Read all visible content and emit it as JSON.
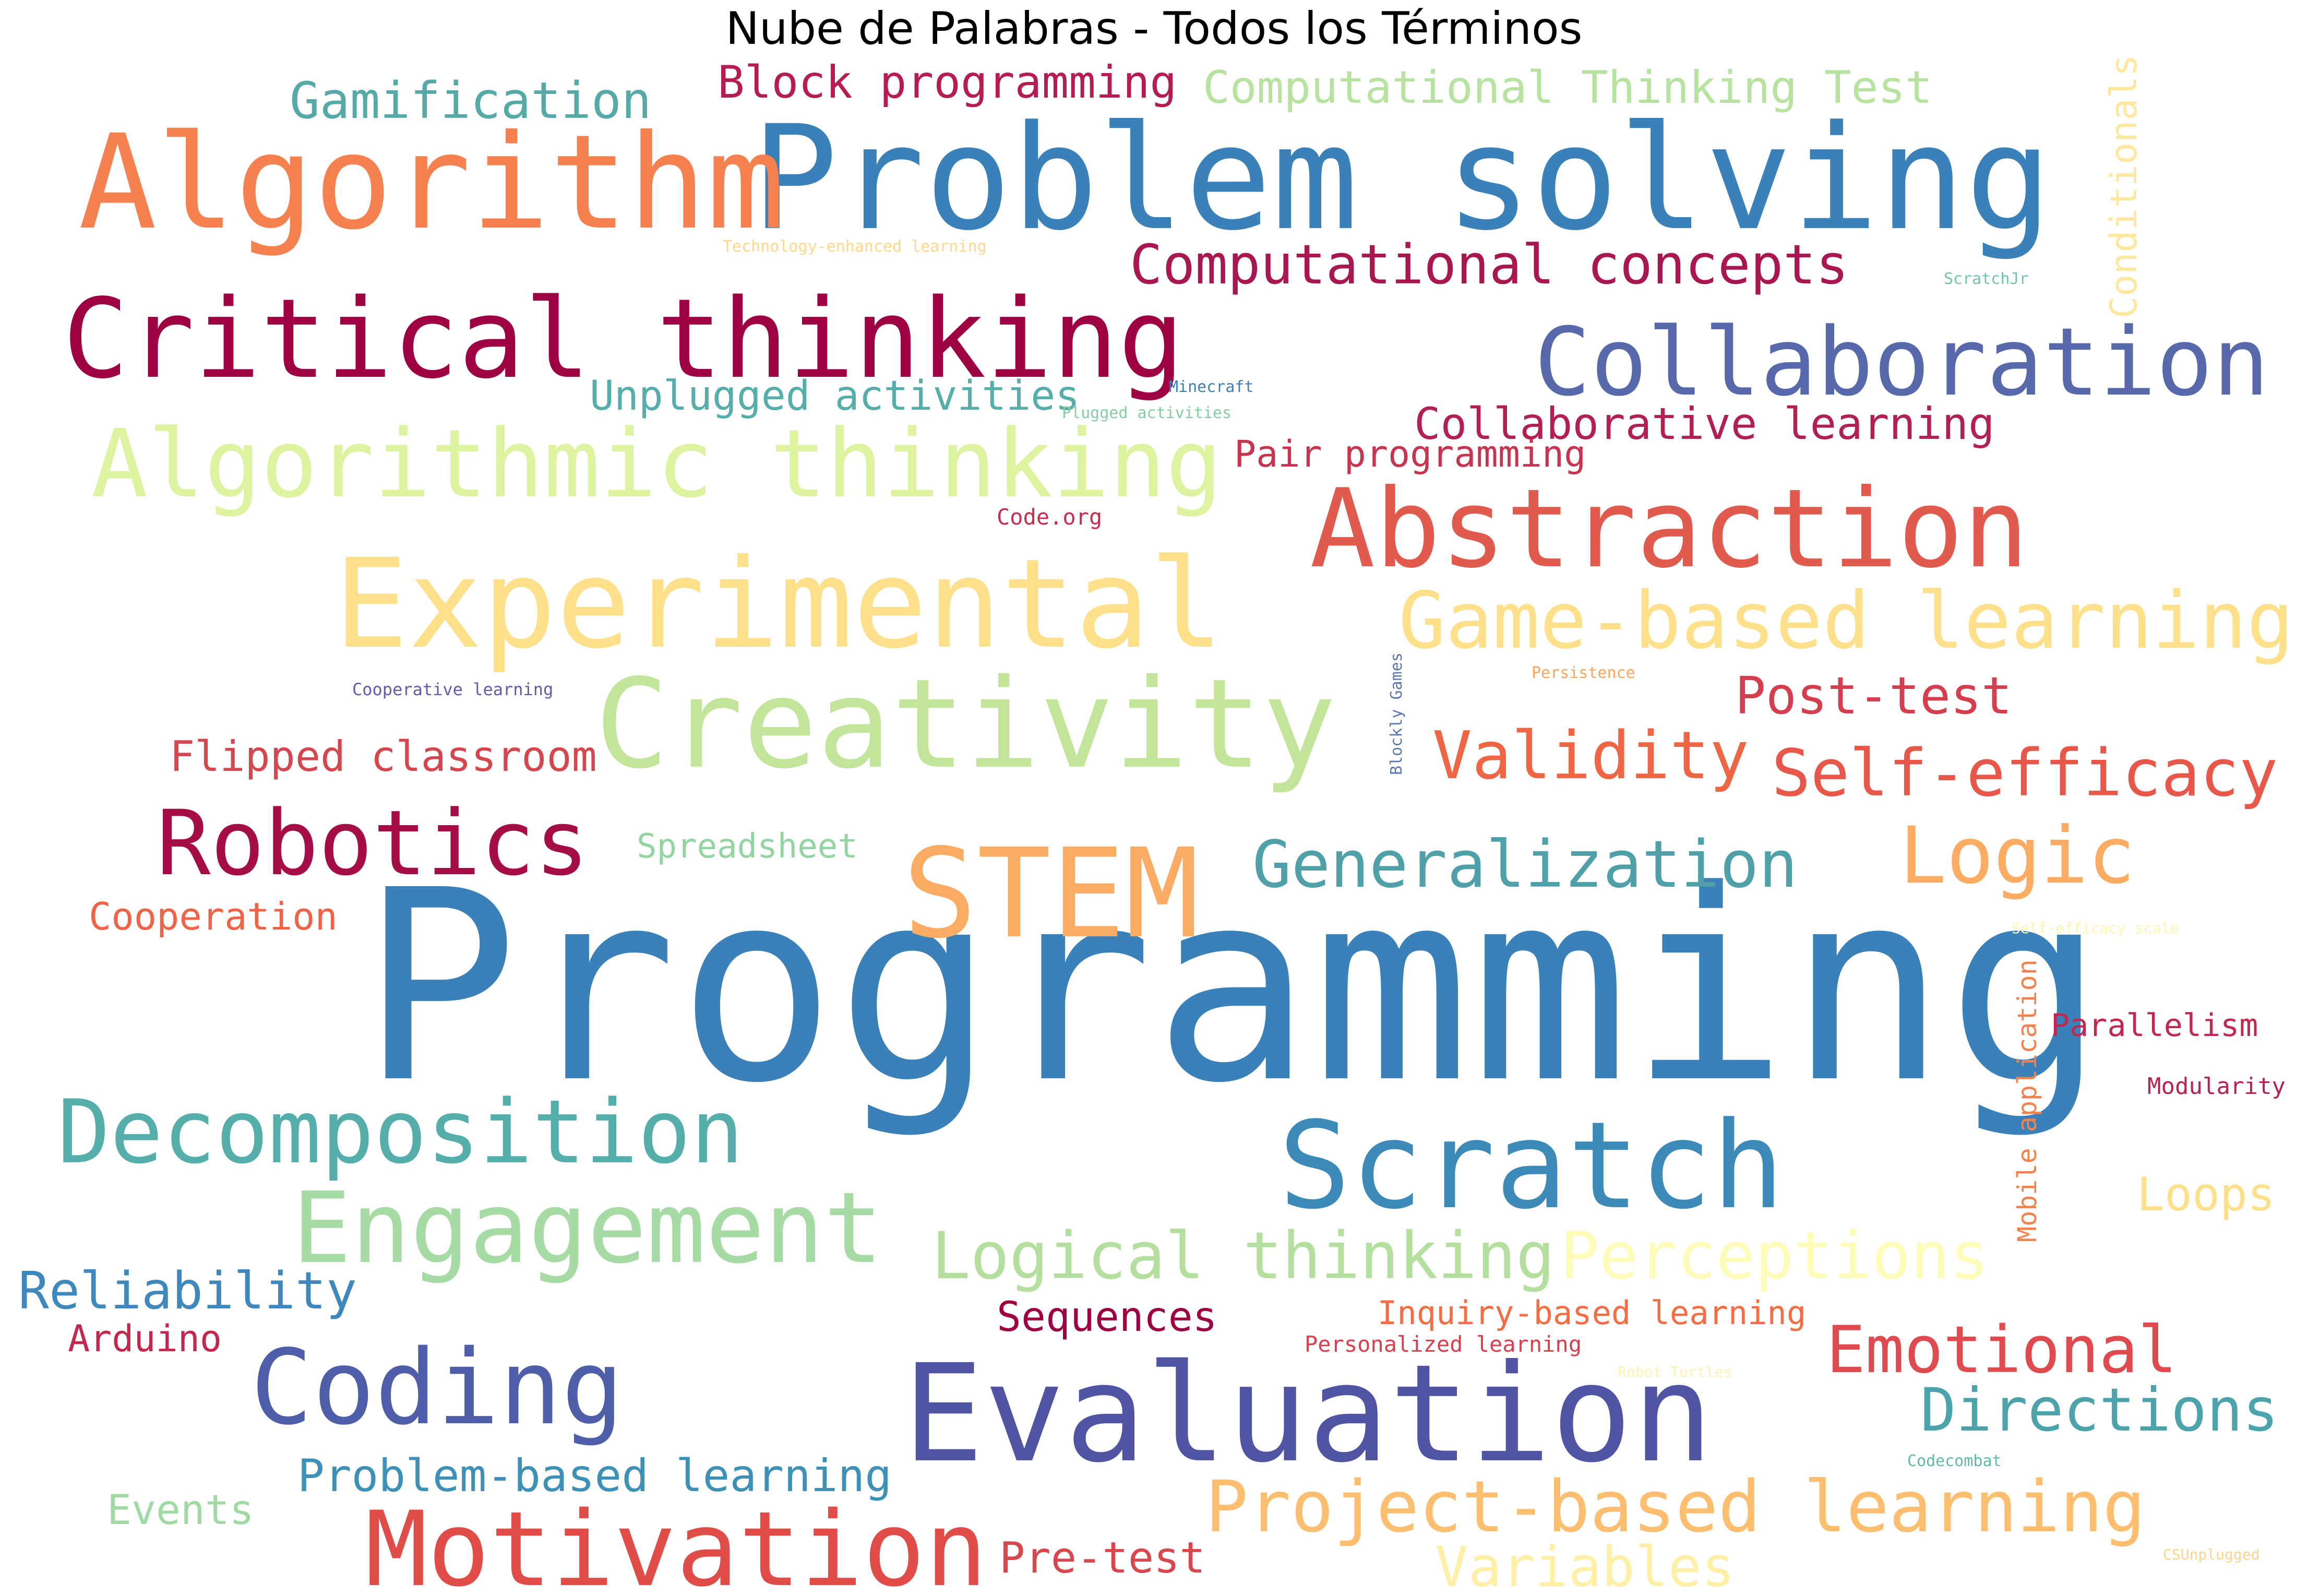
{
  "figure": {
    "title": "Nube de Palabras - Todos los Términos"
  },
  "words": [
    {
      "text": "Programming",
      "color": "#3a80b9"
    },
    {
      "text": "Problem solving",
      "color": "#3a80b9"
    },
    {
      "text": "Algorithm",
      "color": "#f4814f"
    },
    {
      "text": "Evaluation",
      "color": "#5054a3"
    },
    {
      "text": "Creativity",
      "color": "#c2e599"
    },
    {
      "text": "Experimental",
      "color": "#fee08b"
    },
    {
      "text": "Critical thinking",
      "color": "#9e0142"
    },
    {
      "text": "Abstraction",
      "color": "#e05a4d"
    },
    {
      "text": "Collaboration",
      "color": "#5769aa"
    },
    {
      "text": "Algorithmic thinking",
      "color": "#def3a0"
    },
    {
      "text": "STEM",
      "color": "#fbac62"
    },
    {
      "text": "Scratch",
      "color": "#3d8ab8"
    },
    {
      "text": "Motivation",
      "color": "#e04d48"
    },
    {
      "text": "Engagement",
      "color": "#a6dba4"
    },
    {
      "text": "Decomposition",
      "color": "#55aea9"
    },
    {
      "text": "Coding",
      "color": "#4e5ea8"
    },
    {
      "text": "Robotics",
      "color": "#a50d47"
    },
    {
      "text": "Game-based learning",
      "color": "#fee08b"
    },
    {
      "text": "Logic",
      "color": "#fbac62"
    },
    {
      "text": "Generalization",
      "color": "#4fa0a8"
    },
    {
      "text": "Project-based learning",
      "color": "#fdbf6f"
    },
    {
      "text": "Self-efficacy",
      "color": "#e8584a"
    },
    {
      "text": "Validity",
      "color": "#ef6645"
    },
    {
      "text": "Logical thinking",
      "color": "#b4df9e"
    },
    {
      "text": "Perceptions",
      "color": "#fffbb8"
    },
    {
      "text": "Emotional",
      "color": "#de4a4d"
    },
    {
      "text": "Directions",
      "color": "#4da3ab"
    },
    {
      "text": "Computational concepts",
      "color": "#a8174f"
    },
    {
      "text": "Post-test",
      "color": "#d53e4f"
    },
    {
      "text": "Variables",
      "color": "#fff0a6"
    },
    {
      "text": "Reliability",
      "color": "#3f88be"
    },
    {
      "text": "Gamification",
      "color": "#55aaa8"
    },
    {
      "text": "Block programming",
      "color": "#b51d4e"
    },
    {
      "text": "Computational Thinking Test",
      "color": "#b8e2a0"
    },
    {
      "text": "Collaborative learning",
      "color": "#b2204f"
    },
    {
      "text": "Unplugged activities",
      "color": "#55aea9"
    },
    {
      "text": "Flipped classroom",
      "color": "#d5474e"
    },
    {
      "text": "Problem-based learning",
      "color": "#3d91b7"
    },
    {
      "text": "Pair programming",
      "color": "#c7344f"
    },
    {
      "text": "Loops",
      "color": "#fee08b"
    },
    {
      "text": "Pre-test",
      "color": "#d8474e"
    },
    {
      "text": "Sequences",
      "color": "#9e0142"
    },
    {
      "text": "Inquiry-based learning",
      "color": "#f46d43"
    },
    {
      "text": "Parallelism",
      "color": "#c0284f"
    },
    {
      "text": "Cooperation",
      "color": "#ef6448"
    },
    {
      "text": "Spreadsheet",
      "color": "#94d3a2"
    },
    {
      "text": "Events",
      "color": "#a0d9a3"
    },
    {
      "text": "Arduino",
      "color": "#c1284f"
    },
    {
      "text": "Conditionals",
      "color": "#fee8a0"
    },
    {
      "text": "Mobile application",
      "color": "#f4824d"
    },
    {
      "text": "Modularity",
      "color": "#b9214e"
    },
    {
      "text": "Personalized learning",
      "color": "#d7404f"
    },
    {
      "text": "Code.org",
      "color": "#c52e4f"
    },
    {
      "text": "Technology-enhanced learning",
      "color": "#fed88a"
    },
    {
      "text": "ScratchJr",
      "color": "#74c5a6"
    },
    {
      "text": "Minecraft",
      "color": "#3d80b9"
    },
    {
      "text": "Plugged activities",
      "color": "#86cca4"
    },
    {
      "text": "Cooperative learning",
      "color": "#5f5ca8"
    },
    {
      "text": "Blockly Games",
      "color": "#5b78b0"
    },
    {
      "text": "Persistence",
      "color": "#fca55e"
    },
    {
      "text": "Self-efficacy scale",
      "color": "#fcf6b0"
    },
    {
      "text": "Robot Turtles",
      "color": "#fff2b2"
    },
    {
      "text": "Codecombat",
      "color": "#62b8a8"
    },
    {
      "text": "CSUnplugged",
      "color": "#fdd58a"
    }
  ]
}
